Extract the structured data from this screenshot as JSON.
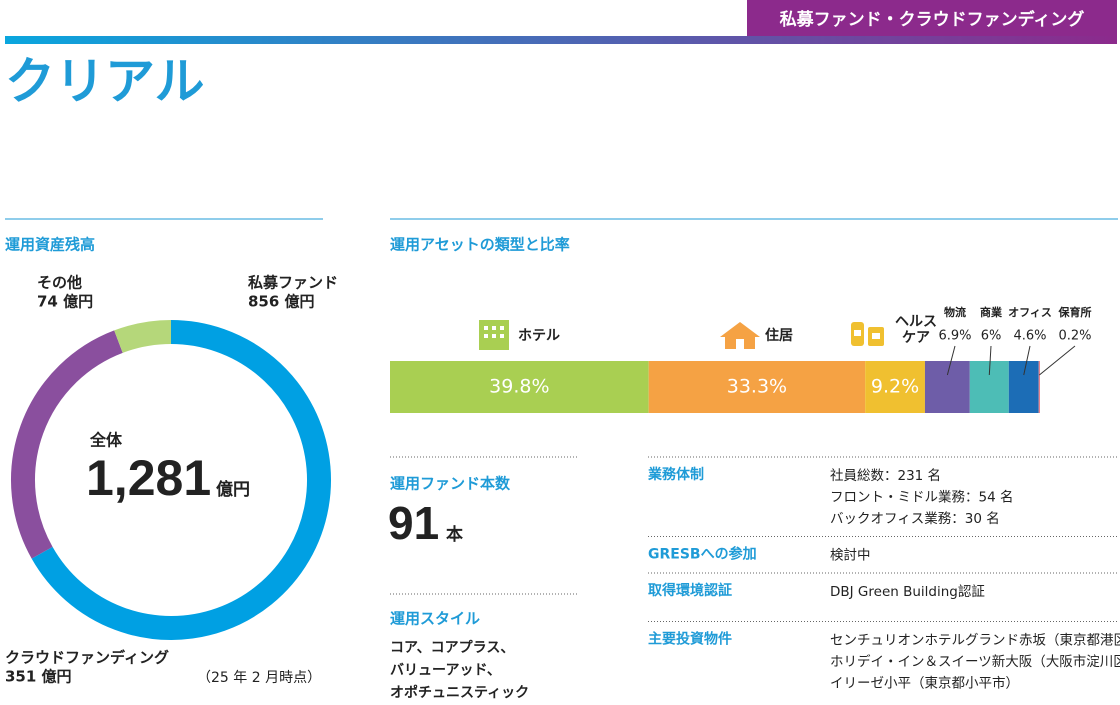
{
  "header": {
    "tag": "私募ファンド・クラウドファンディング",
    "title": "クリアル"
  },
  "chart_data": [
    {
      "type": "donut",
      "title": "運用資産残高",
      "categories": [
        "私募ファンド",
        "クラウドファンディング",
        "その他"
      ],
      "values": [
        856,
        351,
        74
      ],
      "value_labels": [
        "856 億円",
        "351 億円",
        "74 億円"
      ],
      "colors": [
        "#00a0e3",
        "#8a4f9e",
        "#b5d77a"
      ],
      "center_label": "全体",
      "total": {
        "value": 1281,
        "label": "1,281"
      },
      "total_unit": "億円",
      "note": "（25 年 2 月時点）"
    },
    {
      "type": "stacked-bar",
      "title": "運用アセットの類型と比率",
      "categories": [
        "ホテル",
        "住居",
        "ヘルスケア",
        "物流",
        "商業",
        "オフィス",
        "保育所"
      ],
      "values": [
        39.8,
        33.3,
        9.2,
        6.9,
        6,
        4.6,
        0.2
      ],
      "value_labels": [
        "39.8%",
        "33.3%",
        "9.2%",
        "6.9%",
        "6%",
        "4.6%",
        "0.2%"
      ],
      "colors": [
        "#a9cf52",
        "#f5a244",
        "#f0c030",
        "#6e5da8",
        "#4dbdb6",
        "#1c6db6",
        "#e8828a"
      ],
      "xlim": [
        0,
        100
      ]
    }
  ],
  "funds": {
    "title": "運用ファンド本数",
    "count": 91,
    "unit": "本"
  },
  "style": {
    "title": "運用スタイル",
    "lines": [
      "コア、コアプラス、",
      "バリューアッド、",
      "オポチュニスティック"
    ]
  },
  "info": {
    "rows": [
      {
        "label": "業務体制",
        "lines": [
          "社員総数：231 名",
          "フロント・ミドル業務：54 名",
          "バックオフィス業務：30 名"
        ]
      },
      {
        "label": "GRESBへの参加",
        "lines": [
          "検討中"
        ]
      },
      {
        "label": "取得環境認証",
        "lines": [
          "DBJ Green Building認証"
        ]
      },
      {
        "label": "主要投資物件",
        "lines": [
          "センチュリオンホテルグランド赤坂（東京都港区）",
          "ホリデイ・イン＆スイーツ新大阪（大阪市淀川区）",
          "イリーゼ小平（東京都小平市）"
        ]
      }
    ]
  }
}
